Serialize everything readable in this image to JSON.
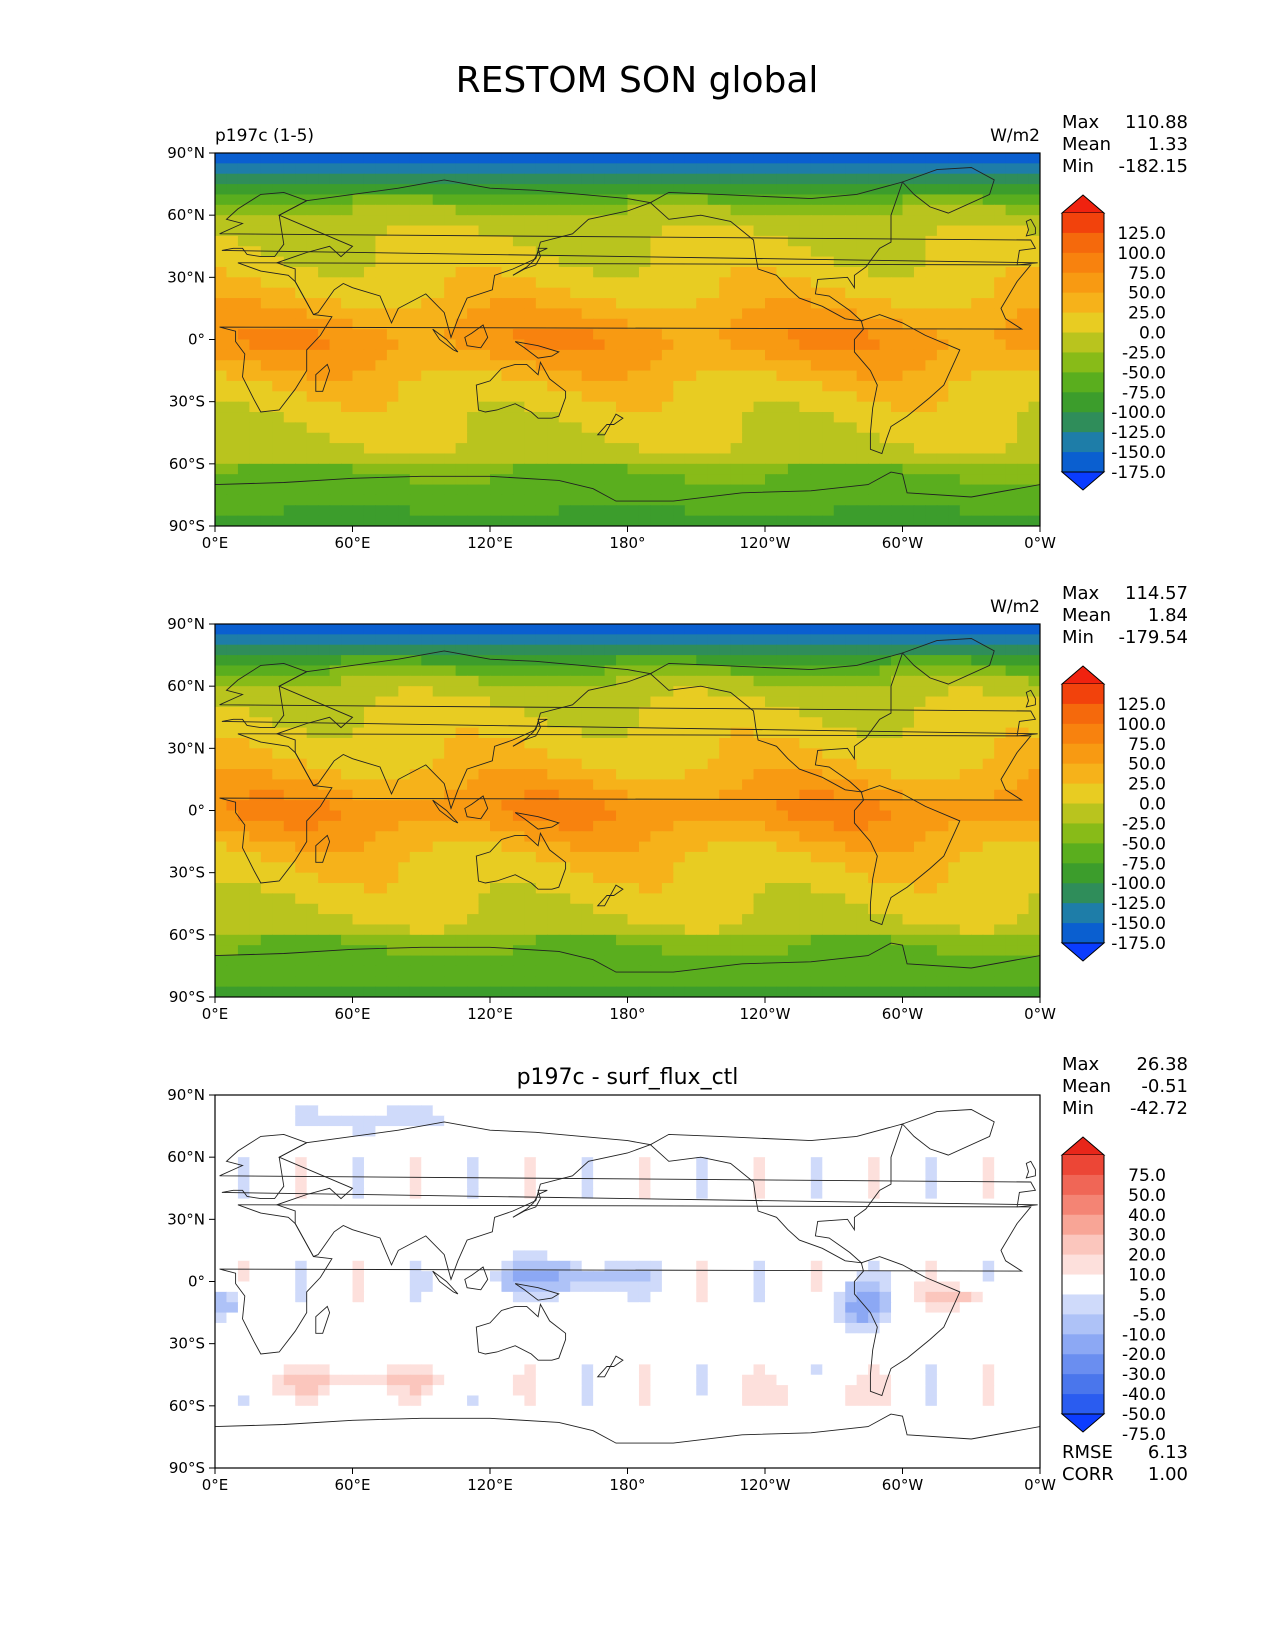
{
  "title": "RESTOM SON global",
  "lon_ticks": [
    "0°E",
    "60°E",
    "120°E",
    "180°",
    "120°W",
    "60°W",
    "0°W"
  ],
  "lat_ticks": [
    "90°N",
    "60°N",
    "30°N",
    "0°",
    "30°S",
    "60°S",
    "90°S"
  ],
  "colors": {
    "abs_levels": [
      "#0a3cff",
      "#0a5fd0",
      "#1e7da8",
      "#2f8d5a",
      "#3c9d2c",
      "#5aae1e",
      "#88bb18",
      "#b9c41e",
      "#e8cc22",
      "#f6b21a",
      "#f89a12",
      "#f8820e",
      "#f5690c",
      "#f2420c",
      "#f0220f"
    ],
    "diff_levels": [
      "#0c3cff",
      "#2a5cf0",
      "#4a76ec",
      "#6a8ef0",
      "#8ca8f4",
      "#aec2f7",
      "#cfdafa",
      "#ffffff",
      "#fde0dc",
      "#fbc6bd",
      "#f8a596",
      "#f48474",
      "#f06656",
      "#ec4636",
      "#e8261a"
    ],
    "coast": "#222222"
  },
  "panels": [
    {
      "id": "test",
      "left_label": "p197c (1-5)",
      "center_title": "",
      "units": "W/m2",
      "stats": {
        "max_label": "Max",
        "max": "110.88",
        "mean_label": "Mean",
        "mean": "1.33",
        "min_label": "Min",
        "min": "-182.15"
      },
      "colorbar_labels": [
        "125.0",
        "100.0",
        "75.0",
        "50.0",
        "25.0",
        "0.0",
        "-25.0",
        "-50.0",
        "-75.0",
        "-100.0",
        "-125.0",
        "-150.0",
        "-175.0"
      ],
      "palette": "abs",
      "extra_stats": []
    },
    {
      "id": "ref",
      "left_label": "",
      "center_title": "",
      "units": "W/m2",
      "stats": {
        "max_label": "Max",
        "max": "114.57",
        "mean_label": "Mean",
        "mean": "1.84",
        "min_label": "Min",
        "min": "-179.54"
      },
      "colorbar_labels": [
        "125.0",
        "100.0",
        "75.0",
        "50.0",
        "25.0",
        "0.0",
        "-25.0",
        "-50.0",
        "-75.0",
        "-100.0",
        "-125.0",
        "-150.0",
        "-175.0"
      ],
      "palette": "abs",
      "extra_stats": []
    },
    {
      "id": "diff",
      "left_label": "",
      "center_title": "p197c - surf_flux_ctl",
      "units": "",
      "stats": {
        "max_label": "Max",
        "max": "26.38",
        "mean_label": "Mean",
        "mean": "-0.51",
        "min_label": "Min",
        "min": "-42.72"
      },
      "colorbar_labels": [
        "75.0",
        "50.0",
        "40.0",
        "30.0",
        "20.0",
        "10.0",
        "5.0",
        "-5.0",
        "-10.0",
        "-20.0",
        "-30.0",
        "-40.0",
        "-50.0",
        "-75.0"
      ],
      "palette": "diff",
      "extra_stats": [
        {
          "label": "RMSE",
          "value": "6.13"
        },
        {
          "label": "CORR",
          "value": "1.00"
        }
      ]
    }
  ],
  "chart_data": {
    "type": "heatmap",
    "title": "RESTOM SON global",
    "projection": "lat-lon",
    "x": {
      "label": "",
      "range": [
        0,
        360
      ],
      "ticks": [
        0,
        60,
        120,
        180,
        240,
        300,
        360
      ]
    },
    "y": {
      "label": "",
      "range": [
        -90,
        90
      ],
      "ticks": [
        90,
        60,
        30,
        0,
        -30,
        -60,
        -90
      ]
    },
    "series": [
      {
        "name": "p197c (1-5)",
        "units": "W/m2",
        "max": 110.88,
        "mean": 1.33,
        "min": -182.15,
        "levels": [
          -175,
          -150,
          -125,
          -100,
          -75,
          -50,
          -25,
          0,
          25,
          50,
          75,
          100,
          125
        ]
      },
      {
        "name": "",
        "units": "W/m2",
        "max": 114.57,
        "mean": 1.84,
        "min": -179.54,
        "levels": [
          -175,
          -150,
          -125,
          -100,
          -75,
          -50,
          -25,
          0,
          25,
          50,
          75,
          100,
          125
        ]
      },
      {
        "name": "p197c - surf_flux_ctl",
        "units": "",
        "max": 26.38,
        "mean": -0.51,
        "min": -42.72,
        "rmse": 6.13,
        "corr": 1.0,
        "levels": [
          -75,
          -50,
          -40,
          -30,
          -20,
          -10,
          -5,
          5,
          10,
          20,
          30,
          40,
          50,
          75
        ]
      }
    ]
  }
}
